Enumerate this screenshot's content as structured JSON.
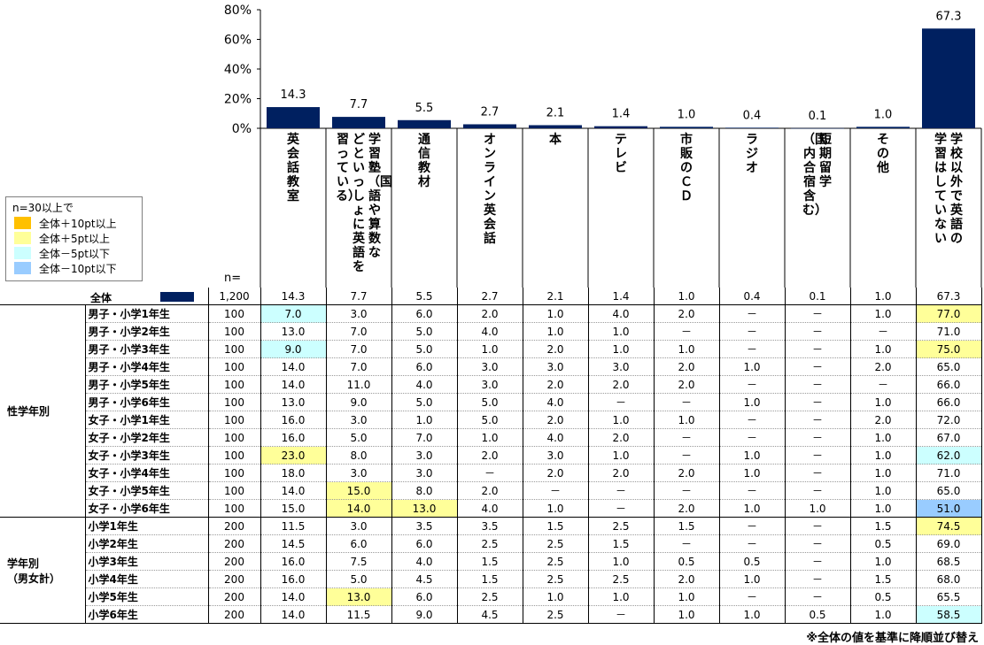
{
  "chart_data": {
    "type": "bar",
    "categories": [
      "英会話教室",
      "学習塾（国語や算数などといっしょに英語を習っている）",
      "通信教材",
      "オンライン英会話",
      "本",
      "テレビ",
      "市販のＣＤ",
      "ラジオ",
      "短期留学（国内合宿含む）",
      "その他",
      "学校以外で英語の学習はしていない"
    ],
    "category_columns": [
      [
        "英会話教室"
      ],
      [
        "学習塾（国語や算数な",
        "どといっしょに英語を",
        "習っている）"
      ],
      [
        "通信教材"
      ],
      [
        "オンライン英会話"
      ],
      [
        "本"
      ],
      [
        "テレビ"
      ],
      [
        "市販のＣＤ"
      ],
      [
        "ラジオ"
      ],
      [
        "短期留学",
        "（国内合宿含む）"
      ],
      [
        "その他"
      ],
      [
        "学校以外で英語の",
        "学習はしていない"
      ]
    ],
    "values": [
      14.3,
      7.7,
      5.5,
      2.7,
      2.1,
      1.4,
      1.0,
      0.4,
      0.1,
      1.0,
      67.3
    ],
    "value_labels": [
      "14.3",
      "7.7",
      "5.5",
      "2.7",
      "2.1",
      "1.4",
      "1.0",
      "0.4",
      "0.1",
      "1.0",
      "67.3"
    ],
    "yticks": [
      "80%",
      "60%",
      "40%",
      "20%",
      "0%"
    ],
    "ylim": [
      0,
      80
    ],
    "bar_color": "#002060"
  },
  "legend": {
    "title": "n=30以上で",
    "items": [
      {
        "label": "全体＋10pt以上",
        "color": "#ffc000"
      },
      {
        "label": "全体＋5pt以上",
        "color": "#ffff99"
      },
      {
        "label": "全体－5pt以下",
        "color": "#ccffff"
      },
      {
        "label": "全体－10pt以下",
        "color": "#99ccff"
      }
    ]
  },
  "n_label": "n=",
  "total_row": {
    "label": "全体",
    "n": "1,200",
    "values": [
      "14.3",
      "7.7",
      "5.5",
      "2.7",
      "2.1",
      "1.4",
      "1.0",
      "0.4",
      "0.1",
      "1.0",
      "67.3"
    ]
  },
  "groups": [
    {
      "label_lines": [
        "性学年別"
      ],
      "rows": [
        {
          "label": "男子・小学1年生",
          "n": "100",
          "values": [
            "7.0",
            "3.0",
            "6.0",
            "2.0",
            "1.0",
            "4.0",
            "2.0",
            "－",
            "－",
            "1.0",
            "77.0"
          ],
          "hl": {
            "0": "b5",
            "10": "y5"
          }
        },
        {
          "label": "男子・小学2年生",
          "n": "100",
          "values": [
            "13.0",
            "7.0",
            "5.0",
            "4.0",
            "1.0",
            "1.0",
            "－",
            "－",
            "－",
            "－",
            "71.0"
          ],
          "hl": {}
        },
        {
          "label": "男子・小学3年生",
          "n": "100",
          "values": [
            "9.0",
            "7.0",
            "5.0",
            "1.0",
            "2.0",
            "1.0",
            "1.0",
            "－",
            "－",
            "1.0",
            "75.0"
          ],
          "hl": {
            "0": "b5",
            "10": "y5"
          }
        },
        {
          "label": "男子・小学4年生",
          "n": "100",
          "values": [
            "14.0",
            "7.0",
            "6.0",
            "3.0",
            "3.0",
            "3.0",
            "2.0",
            "1.0",
            "－",
            "2.0",
            "65.0"
          ],
          "hl": {}
        },
        {
          "label": "男子・小学5年生",
          "n": "100",
          "values": [
            "14.0",
            "11.0",
            "4.0",
            "3.0",
            "2.0",
            "2.0",
            "2.0",
            "－",
            "－",
            "－",
            "66.0"
          ],
          "hl": {}
        },
        {
          "label": "男子・小学6年生",
          "n": "100",
          "values": [
            "13.0",
            "9.0",
            "5.0",
            "5.0",
            "4.0",
            "－",
            "－",
            "1.0",
            "－",
            "1.0",
            "66.0"
          ],
          "hl": {}
        },
        {
          "label": "女子・小学1年生",
          "n": "100",
          "values": [
            "16.0",
            "3.0",
            "1.0",
            "5.0",
            "2.0",
            "1.0",
            "1.0",
            "－",
            "－",
            "2.0",
            "72.0"
          ],
          "hl": {}
        },
        {
          "label": "女子・小学2年生",
          "n": "100",
          "values": [
            "16.0",
            "5.0",
            "7.0",
            "1.0",
            "4.0",
            "2.0",
            "－",
            "－",
            "－",
            "1.0",
            "67.0"
          ],
          "hl": {}
        },
        {
          "label": "女子・小学3年生",
          "n": "100",
          "values": [
            "23.0",
            "8.0",
            "3.0",
            "2.0",
            "3.0",
            "1.0",
            "－",
            "1.0",
            "－",
            "1.0",
            "62.0"
          ],
          "hl": {
            "0": "y5",
            "10": "b5"
          }
        },
        {
          "label": "女子・小学4年生",
          "n": "100",
          "values": [
            "18.0",
            "3.0",
            "3.0",
            "－",
            "2.0",
            "2.0",
            "2.0",
            "1.0",
            "－",
            "1.0",
            "71.0"
          ],
          "hl": {}
        },
        {
          "label": "女子・小学5年生",
          "n": "100",
          "values": [
            "14.0",
            "15.0",
            "8.0",
            "2.0",
            "－",
            "－",
            "－",
            "－",
            "－",
            "1.0",
            "65.0"
          ],
          "hl": {
            "1": "y5"
          }
        },
        {
          "label": "女子・小学6年生",
          "n": "100",
          "values": [
            "15.0",
            "14.0",
            "13.0",
            "4.0",
            "1.0",
            "－",
            "2.0",
            "1.0",
            "1.0",
            "1.0",
            "51.0"
          ],
          "hl": {
            "1": "y5",
            "2": "y5",
            "10": "b10"
          }
        }
      ]
    },
    {
      "label_lines": [
        "学年別",
        "（男女計）"
      ],
      "rows": [
        {
          "label": "小学1年生",
          "n": "200",
          "values": [
            "11.5",
            "3.0",
            "3.5",
            "3.5",
            "1.5",
            "2.5",
            "1.5",
            "－",
            "－",
            "1.5",
            "74.5"
          ],
          "hl": {
            "10": "y5"
          }
        },
        {
          "label": "小学2年生",
          "n": "200",
          "values": [
            "14.5",
            "6.0",
            "6.0",
            "2.5",
            "2.5",
            "1.5",
            "－",
            "－",
            "－",
            "0.5",
            "69.0"
          ],
          "hl": {}
        },
        {
          "label": "小学3年生",
          "n": "200",
          "values": [
            "16.0",
            "7.5",
            "4.0",
            "1.5",
            "2.5",
            "1.0",
            "0.5",
            "0.5",
            "－",
            "1.0",
            "68.5"
          ],
          "hl": {}
        },
        {
          "label": "小学4年生",
          "n": "200",
          "values": [
            "16.0",
            "5.0",
            "4.5",
            "1.5",
            "2.5",
            "2.5",
            "2.0",
            "1.0",
            "－",
            "1.5",
            "68.0"
          ],
          "hl": {}
        },
        {
          "label": "小学5年生",
          "n": "200",
          "values": [
            "14.0",
            "13.0",
            "6.0",
            "2.5",
            "1.0",
            "1.0",
            "1.0",
            "－",
            "－",
            "0.5",
            "65.5"
          ],
          "hl": {
            "1": "y5"
          }
        },
        {
          "label": "小学6年生",
          "n": "200",
          "values": [
            "14.0",
            "11.5",
            "9.0",
            "4.5",
            "2.5",
            "－",
            "1.0",
            "1.0",
            "0.5",
            "1.0",
            "58.5"
          ],
          "hl": {
            "10": "b5"
          }
        }
      ]
    }
  ],
  "footnote": "※全体の値を基準に降順並び替え"
}
